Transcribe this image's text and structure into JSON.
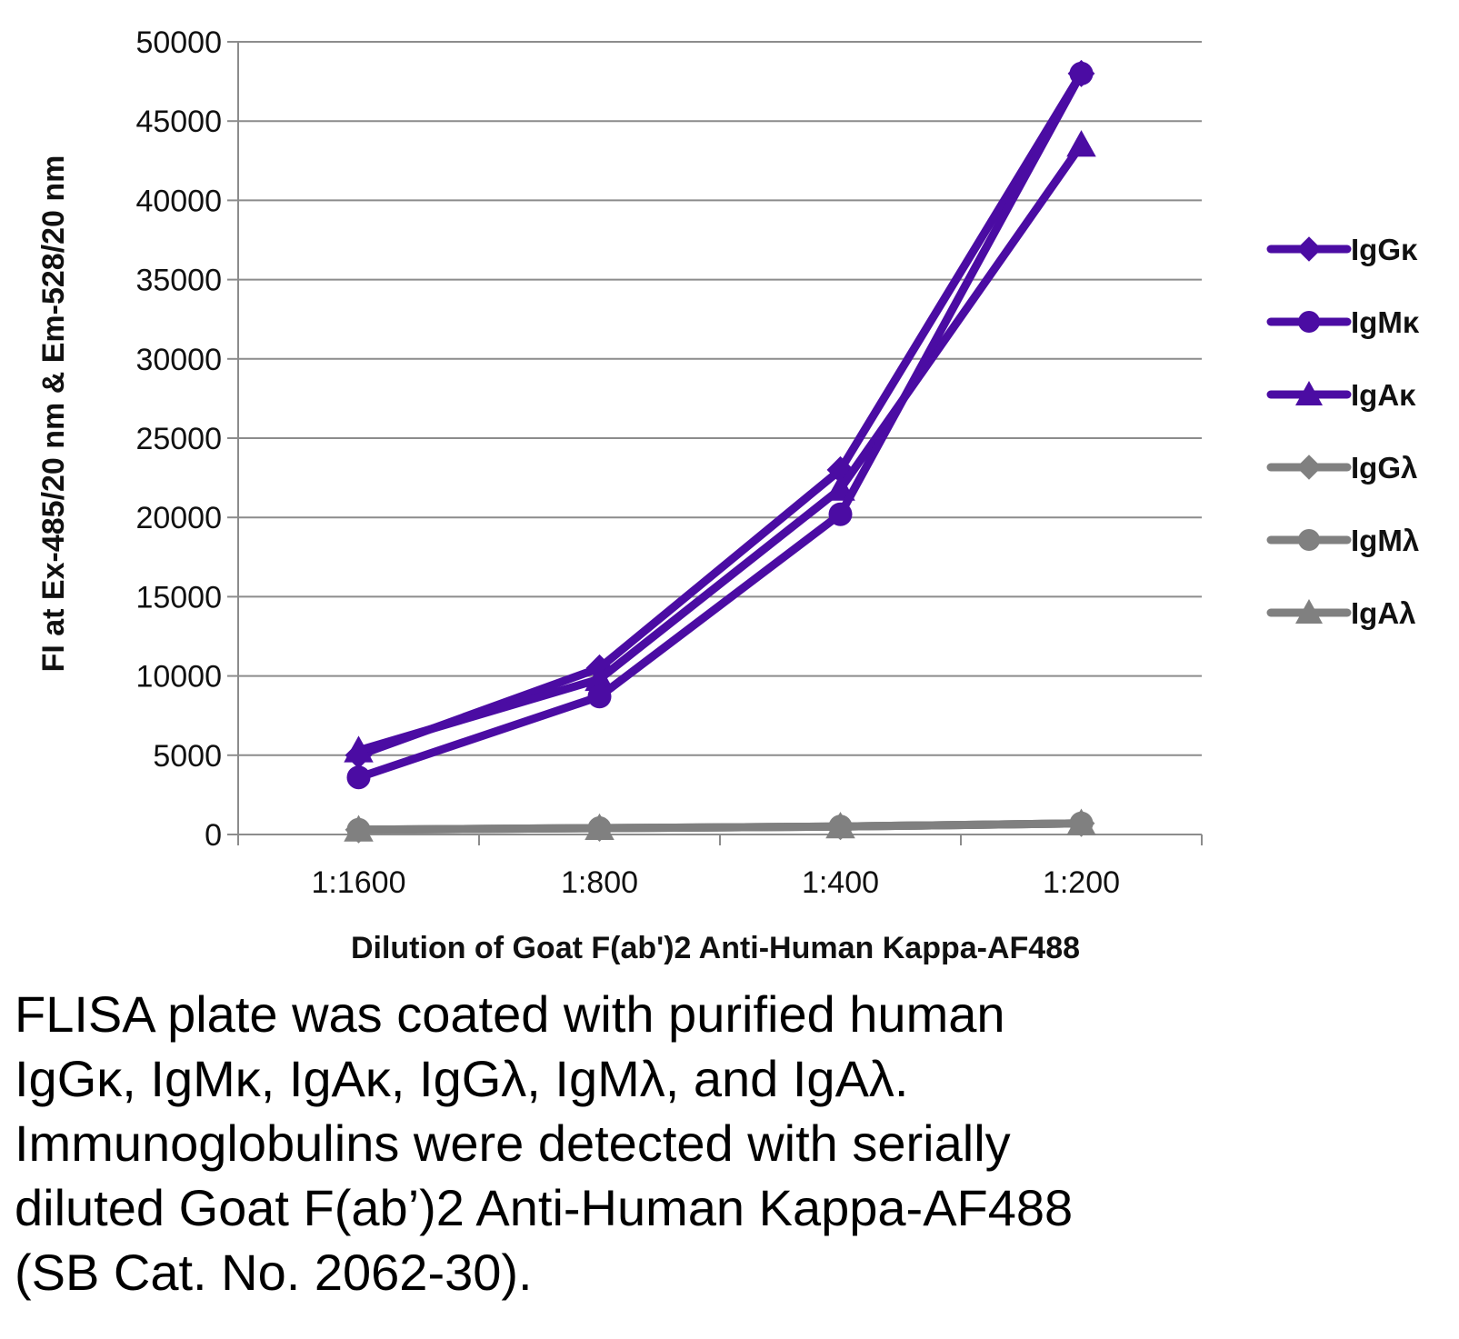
{
  "chart_data": {
    "type": "line",
    "xlabel": "Dilution of Goat F(ab')2 Anti-Human Kappa-AF488",
    "ylabel": "FI at Ex-485/20 nm & Em-528/20 nm",
    "categories": [
      "1:1600",
      "1:800",
      "1:400",
      "1:200"
    ],
    "ylim": [
      0,
      50000
    ],
    "yticks": [
      0,
      5000,
      10000,
      15000,
      20000,
      25000,
      30000,
      35000,
      40000,
      45000,
      50000
    ],
    "grid": true,
    "legend_position": "right",
    "series": [
      {
        "name": "IgGκ",
        "marker": "diamond",
        "color": "#4b0ca3",
        "values": [
          5000,
          10500,
          23000,
          48000
        ]
      },
      {
        "name": "IgMκ",
        "marker": "circle",
        "color": "#4b0ca3",
        "values": [
          3600,
          8700,
          20200,
          48000
        ]
      },
      {
        "name": "IgAκ",
        "marker": "triangle",
        "color": "#4b0ca3",
        "values": [
          5300,
          9800,
          21800,
          43500
        ]
      },
      {
        "name": "IgGλ",
        "marker": "diamond",
        "color": "#808080",
        "values": [
          300,
          400,
          500,
          700
        ]
      },
      {
        "name": "IgMλ",
        "marker": "circle",
        "color": "#808080",
        "values": [
          300,
          400,
          500,
          700
        ]
      },
      {
        "name": "IgAλ",
        "marker": "triangle",
        "color": "#808080",
        "values": [
          300,
          400,
          500,
          700
        ]
      }
    ]
  },
  "caption": "FLISA plate was coated with purified human\nIgGκ, IgMκ, IgAκ, IgGλ, IgMλ, and IgAλ.\nImmunoglobulins were detected with serially\ndiluted Goat F(ab’)2 Anti-Human Kappa-AF488\n(SB Cat. No. 2062-30)."
}
